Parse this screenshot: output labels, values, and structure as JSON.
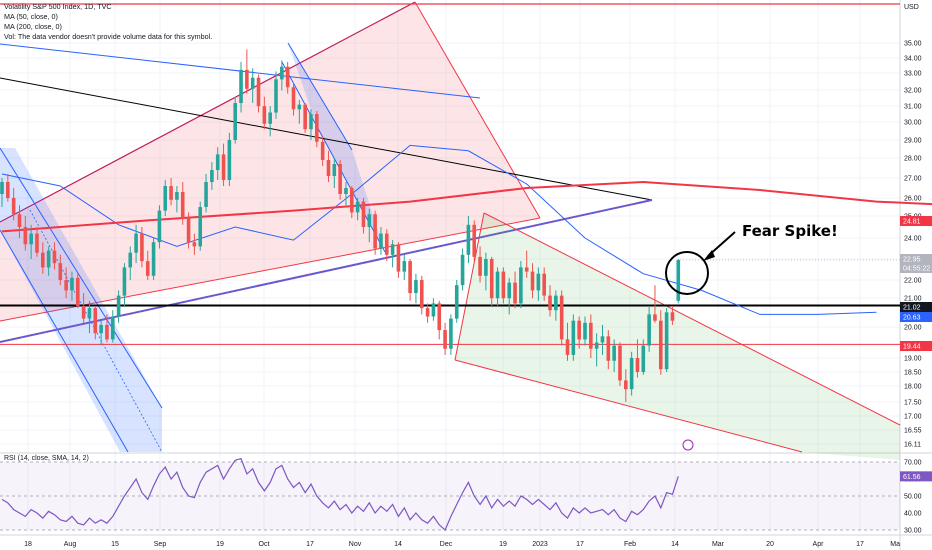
{
  "legend": {
    "title": "Volatility S&P 500 Index, 1D, TVC",
    "ma50": "MA (50, close, 0)",
    "ma200": "MA (200, close, 0)",
    "vol": "Vol: The data vendor doesn't provide volume data for this symbol."
  },
  "rsi_legend": "RSI (14, close, SMA, 14, 2)",
  "currency": "USD",
  "price_axis": [
    "35.00",
    "34.00",
    "33.00",
    "32.00",
    "31.00",
    "30.00",
    "29.00",
    "28.00",
    "27.00",
    "26.00",
    "25.00",
    "24.00",
    "23.00",
    "22.00",
    "21.00",
    "20.00",
    "19.00",
    "18.50",
    "18.00",
    "17.50",
    "17.00",
    "16.55",
    "16.11"
  ],
  "price_tags": [
    {
      "name": "ma200-tag",
      "text": "24.81",
      "color": "#f23645"
    },
    {
      "name": "last-price-tag",
      "text": "22.95",
      "color": "#b2b5be"
    },
    {
      "name": "countdown-tag",
      "text": "04:55:22",
      "color": "#b2b5be"
    },
    {
      "name": "support-tag",
      "text": "21.02",
      "color": "#131722"
    },
    {
      "name": "ma50-tag",
      "text": "20.63",
      "color": "#2962ff"
    },
    {
      "name": "low-line-tag",
      "text": "19.44",
      "color": "#f23645"
    }
  ],
  "rsi_axis": [
    "70.00",
    "60.00",
    "50.00",
    "40.00",
    "30.00"
  ],
  "rsi_tag": {
    "text": "61.56",
    "color": "#7e57c2"
  },
  "date_axis": [
    "18",
    "Aug",
    "15",
    "Sep",
    "19",
    "Oct",
    "17",
    "Nov",
    "14",
    "Dec",
    "19",
    "2023",
    "17",
    "Feb",
    "14",
    "Mar",
    "20",
    "Apr",
    "17",
    "Ma"
  ],
  "annotation": "Fear Spike!",
  "chart_data": {
    "type": "candlestick",
    "title": "Volatility S&P 500 Index, 1D, TVC",
    "y_range": [
      15.9,
      36.2
    ],
    "rsi_range": [
      28,
      72
    ],
    "series": [
      {
        "name": "MA (50, close, 0)",
        "color": "#2962ff"
      },
      {
        "name": "MA (200, close, 0)",
        "color": "#f23645"
      }
    ],
    "candles": [
      [
        26.2,
        27.0,
        25.5,
        26.8
      ],
      [
        26.8,
        27.2,
        25.8,
        26.0
      ],
      [
        26.0,
        26.5,
        24.8,
        25.1
      ],
      [
        25.1,
        25.6,
        24.0,
        24.5
      ],
      [
        24.5,
        25.0,
        23.4,
        23.7
      ],
      [
        23.7,
        24.6,
        23.0,
        24.2
      ],
      [
        24.2,
        24.5,
        23.1,
        23.3
      ],
      [
        23.3,
        23.8,
        22.3,
        22.6
      ],
      [
        22.6,
        23.6,
        22.2,
        23.4
      ],
      [
        23.4,
        23.8,
        22.5,
        22.8
      ],
      [
        22.8,
        23.2,
        21.8,
        22.0
      ],
      [
        22.0,
        22.6,
        21.3,
        21.6
      ],
      [
        21.6,
        22.4,
        21.2,
        22.1
      ],
      [
        22.1,
        22.3,
        20.9,
        21.0
      ],
      [
        21.0,
        21.5,
        20.2,
        20.4
      ],
      [
        20.4,
        21.2,
        19.8,
        20.9
      ],
      [
        20.9,
        21.0,
        19.6,
        19.8
      ],
      [
        19.8,
        20.3,
        19.4,
        20.1
      ],
      [
        20.1,
        20.6,
        19.5,
        19.6
      ],
      [
        19.6,
        20.8,
        19.5,
        20.5
      ],
      [
        20.5,
        21.6,
        20.2,
        21.4
      ],
      [
        21.4,
        22.8,
        21.0,
        22.6
      ],
      [
        22.6,
        23.6,
        22.0,
        23.3
      ],
      [
        23.3,
        24.6,
        22.8,
        24.2
      ],
      [
        24.2,
        24.5,
        22.6,
        22.9
      ],
      [
        22.9,
        23.4,
        22.0,
        22.2
      ],
      [
        22.2,
        24.0,
        22.0,
        23.8
      ],
      [
        23.8,
        25.6,
        23.5,
        25.3
      ],
      [
        25.3,
        26.9,
        25.0,
        26.6
      ],
      [
        26.6,
        27.0,
        25.6,
        25.9
      ],
      [
        25.9,
        26.6,
        25.2,
        26.3
      ],
      [
        26.3,
        26.8,
        24.6,
        24.9
      ],
      [
        24.9,
        25.2,
        23.5,
        23.8
      ],
      [
        23.8,
        24.2,
        23.2,
        23.6
      ],
      [
        23.6,
        25.8,
        23.4,
        25.5
      ],
      [
        25.5,
        27.2,
        25.2,
        26.8
      ],
      [
        26.8,
        27.8,
        26.4,
        27.4
      ],
      [
        27.4,
        28.6,
        26.9,
        28.2
      ],
      [
        28.2,
        28.8,
        26.6,
        26.9
      ],
      [
        26.9,
        29.4,
        26.6,
        29.0
      ],
      [
        29.0,
        31.6,
        28.8,
        31.2
      ],
      [
        31.2,
        33.8,
        30.6,
        33.3
      ],
      [
        33.3,
        34.6,
        31.8,
        32.1
      ],
      [
        32.1,
        33.4,
        31.2,
        32.8
      ],
      [
        32.8,
        33.0,
        30.6,
        31.0
      ],
      [
        31.0,
        31.6,
        29.6,
        29.9
      ],
      [
        29.9,
        31.0,
        29.2,
        30.6
      ],
      [
        30.6,
        33.2,
        30.2,
        32.7
      ],
      [
        32.7,
        33.9,
        32.0,
        33.5
      ],
      [
        33.5,
        33.8,
        31.8,
        32.2
      ],
      [
        32.2,
        32.5,
        30.4,
        30.8
      ],
      [
        30.8,
        31.4,
        29.9,
        31.1
      ],
      [
        31.1,
        31.2,
        29.4,
        29.6
      ],
      [
        29.6,
        30.8,
        29.0,
        30.5
      ],
      [
        30.5,
        30.7,
        28.6,
        28.9
      ],
      [
        28.9,
        29.2,
        27.6,
        27.9
      ],
      [
        27.9,
        28.4,
        26.8,
        27.1
      ],
      [
        27.1,
        28.0,
        26.5,
        27.7
      ],
      [
        27.7,
        27.9,
        25.9,
        26.2
      ],
      [
        26.2,
        26.8,
        25.6,
        26.5
      ],
      [
        26.5,
        26.6,
        24.9,
        25.2
      ],
      [
        25.2,
        26.0,
        24.8,
        25.8
      ],
      [
        25.8,
        26.0,
        24.2,
        24.5
      ],
      [
        24.5,
        25.4,
        23.8,
        25.1
      ],
      [
        25.1,
        25.3,
        23.2,
        23.5
      ],
      [
        23.5,
        24.5,
        23.2,
        24.2
      ],
      [
        24.2,
        24.4,
        22.9,
        23.2
      ],
      [
        23.2,
        23.9,
        22.6,
        23.7
      ],
      [
        23.7,
        23.8,
        22.1,
        22.4
      ],
      [
        22.4,
        23.2,
        22.0,
        22.9
      ],
      [
        22.9,
        23.0,
        21.2,
        21.5
      ],
      [
        21.5,
        22.3,
        21.1,
        22.0
      ],
      [
        22.0,
        22.2,
        20.6,
        20.9
      ],
      [
        20.9,
        21.1,
        20.2,
        20.5
      ],
      [
        20.5,
        21.3,
        20.3,
        21.1
      ],
      [
        21.1,
        21.2,
        19.6,
        19.9
      ],
      [
        19.9,
        20.2,
        19.1,
        19.3
      ],
      [
        19.3,
        20.6,
        19.1,
        20.4
      ],
      [
        20.4,
        22.0,
        20.2,
        21.8
      ],
      [
        21.8,
        23.5,
        21.6,
        23.2
      ],
      [
        23.2,
        25.0,
        22.8,
        24.6
      ],
      [
        24.6,
        24.8,
        22.9,
        23.1
      ],
      [
        23.1,
        23.6,
        21.9,
        22.2
      ],
      [
        22.2,
        23.3,
        21.6,
        23.0
      ],
      [
        23.0,
        23.1,
        21.0,
        21.3
      ],
      [
        21.3,
        22.6,
        21.0,
        22.4
      ],
      [
        22.4,
        22.6,
        21.1,
        21.3
      ],
      [
        21.3,
        22.1,
        20.6,
        21.9
      ],
      [
        21.9,
        22.4,
        20.9,
        21.1
      ],
      [
        21.1,
        22.9,
        20.9,
        22.6
      ],
      [
        22.6,
        23.4,
        22.1,
        22.4
      ],
      [
        22.4,
        22.8,
        21.3,
        21.6
      ],
      [
        21.6,
        22.6,
        21.2,
        22.3
      ],
      [
        22.3,
        22.6,
        21.2,
        21.4
      ],
      [
        21.4,
        21.8,
        20.5,
        20.8
      ],
      [
        20.8,
        21.6,
        20.3,
        21.4
      ],
      [
        21.4,
        21.6,
        19.4,
        19.6
      ],
      [
        19.6,
        20.2,
        18.9,
        19.1
      ],
      [
        19.1,
        20.6,
        18.9,
        20.3
      ],
      [
        20.3,
        20.5,
        19.3,
        19.6
      ],
      [
        19.6,
        20.5,
        19.4,
        20.2
      ],
      [
        20.2,
        20.6,
        19.0,
        19.3
      ],
      [
        19.3,
        19.8,
        18.7,
        19.5
      ],
      [
        19.5,
        20.1,
        19.1,
        19.7
      ],
      [
        19.7,
        19.9,
        18.6,
        18.9
      ],
      [
        18.9,
        19.6,
        18.5,
        19.4
      ],
      [
        19.4,
        19.5,
        18.0,
        18.2
      ],
      [
        18.2,
        18.6,
        17.5,
        17.9
      ],
      [
        17.9,
        19.2,
        17.7,
        19.0
      ],
      [
        19.0,
        19.6,
        18.3,
        18.5
      ],
      [
        18.5,
        19.6,
        18.4,
        19.4
      ],
      [
        19.4,
        21.0,
        19.2,
        20.6
      ],
      [
        20.6,
        21.8,
        20.2,
        20.3
      ],
      [
        20.3,
        20.8,
        18.4,
        18.6
      ],
      [
        18.6,
        20.9,
        18.5,
        20.7
      ],
      [
        20.7,
        21.0,
        20.1,
        20.3
      ],
      [
        21.2,
        23.0,
        21.1,
        22.95
      ]
    ],
    "rsi": [
      48,
      46,
      42,
      40,
      38,
      42,
      40,
      37,
      41,
      39,
      36,
      35,
      38,
      34,
      33,
      37,
      34,
      36,
      34,
      38,
      44,
      50,
      55,
      60,
      52,
      48,
      56,
      63,
      67,
      60,
      64,
      55,
      50,
      49,
      58,
      64,
      66,
      68,
      60,
      66,
      71,
      72,
      63,
      66,
      58,
      53,
      58,
      66,
      68,
      60,
      55,
      58,
      52,
      57,
      50,
      46,
      43,
      47,
      42,
      45,
      40,
      44,
      41,
      46,
      40,
      44,
      41,
      45,
      38,
      43,
      36,
      40,
      36,
      34,
      38,
      33,
      30,
      38,
      45,
      52,
      58,
      50,
      45,
      50,
      43,
      48,
      44,
      47,
      44,
      50,
      48,
      45,
      48,
      45,
      42,
      46,
      40,
      37,
      43,
      40,
      43,
      40,
      41,
      42,
      39,
      42,
      37,
      35,
      41,
      39,
      42,
      47,
      50,
      43,
      52,
      51,
      61.56
    ],
    "ma50": [
      [
        0,
        27.2
      ],
      [
        10,
        26.6
      ],
      [
        20,
        24.6
      ],
      [
        30,
        23.6
      ],
      [
        40,
        24.5
      ],
      [
        50,
        23.9
      ],
      [
        60,
        26.2
      ],
      [
        70,
        28.7
      ],
      [
        80,
        28.4
      ],
      [
        90,
        26.7
      ],
      [
        100,
        24.0
      ],
      [
        110,
        22.3
      ],
      [
        120,
        21.6
      ],
      [
        130,
        20.6
      ],
      [
        140,
        20.6
      ],
      [
        150,
        20.7
      ]
    ],
    "ma200": [
      [
        0,
        24.3
      ],
      [
        25,
        24.8
      ],
      [
        50,
        25.3
      ],
      [
        70,
        25.8
      ],
      [
        90,
        26.5
      ],
      [
        110,
        26.8
      ],
      [
        130,
        26.4
      ],
      [
        150,
        25.8
      ],
      [
        170,
        25.5
      ],
      [
        190,
        25.2
      ],
      [
        205,
        24.81
      ]
    ],
    "levels": {
      "support": 21.02,
      "low_line": 19.44,
      "top_line": 36.2
    }
  }
}
